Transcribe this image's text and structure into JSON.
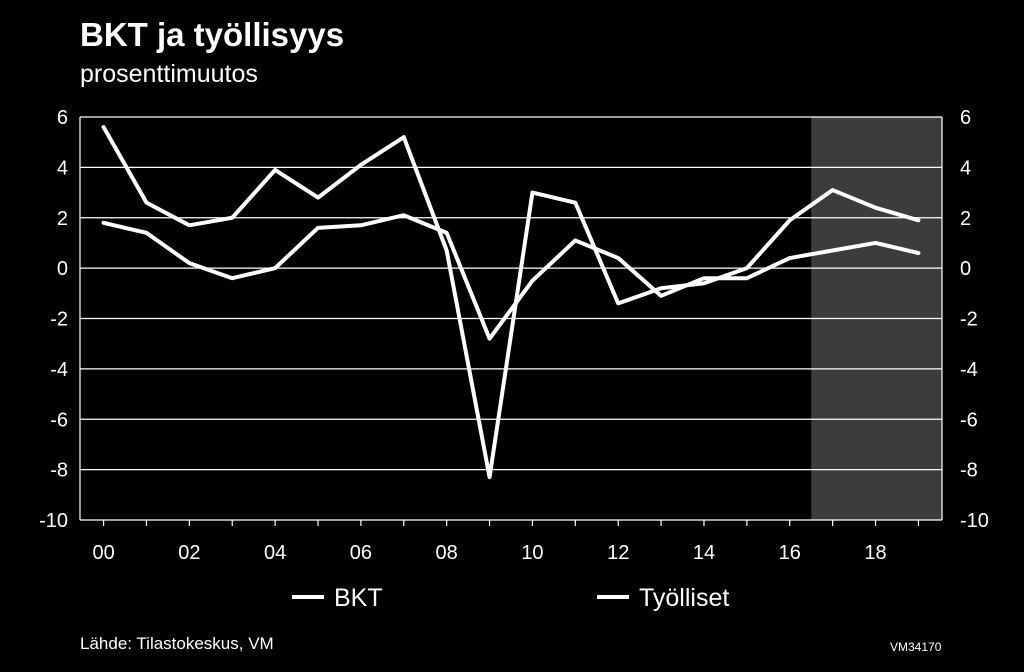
{
  "chart_data": {
    "type": "line",
    "title": "BKT ja työllisyys",
    "subtitle": "prosenttimuutos",
    "x": [
      2000,
      2001,
      2002,
      2003,
      2004,
      2005,
      2006,
      2007,
      2008,
      2009,
      2010,
      2011,
      2012,
      2013,
      2014,
      2015,
      2016,
      2017,
      2018,
      2019
    ],
    "x_tick_labels": [
      "00",
      "02",
      "04",
      "06",
      "08",
      "10",
      "12",
      "14",
      "16",
      "18"
    ],
    "x_tick_values": [
      2000,
      2002,
      2004,
      2006,
      2008,
      2010,
      2012,
      2014,
      2016,
      2018
    ],
    "ylim": [
      -10,
      6
    ],
    "y_tick_values": [
      6,
      4,
      2,
      0,
      -2,
      -4,
      -6,
      -8,
      -10
    ],
    "y_tick_labels": [
      "6",
      "4",
      "2",
      "0",
      "-2",
      "-4",
      "-6",
      "-8",
      "-10"
    ],
    "grid": "horizontal",
    "forecast_shaded_from": 2016.5,
    "legend_position": "bottom",
    "series": [
      {
        "name": "BKT",
        "color": "#ffffff",
        "values": [
          5.6,
          2.6,
          1.7,
          2.0,
          3.9,
          2.8,
          4.1,
          5.2,
          0.7,
          -8.3,
          3.0,
          2.6,
          -1.4,
          -0.8,
          -0.6,
          0.0,
          1.9,
          3.1,
          2.4,
          1.9
        ]
      },
      {
        "name": "Työlliset",
        "color": "#ffffff",
        "values": [
          1.8,
          1.4,
          0.2,
          -0.4,
          0.0,
          1.6,
          1.7,
          2.1,
          1.4,
          -2.8,
          -0.5,
          1.1,
          0.4,
          -1.1,
          -0.4,
          -0.4,
          0.4,
          0.7,
          1.0,
          0.6
        ]
      }
    ]
  },
  "footer": {
    "source": "Lähde: Tilastokeskus, VM",
    "code": "VM34170"
  },
  "colors": {
    "background": "#000000",
    "forecast_area": "#3c3c3c",
    "grid": "#ffffff",
    "line": "#ffffff"
  }
}
